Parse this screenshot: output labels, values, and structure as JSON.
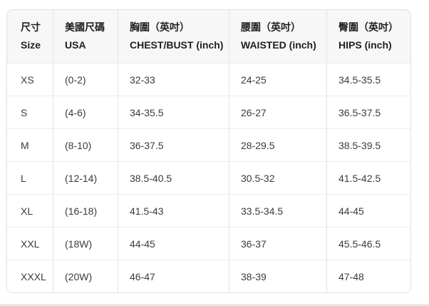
{
  "colors": {
    "page_background": "#ffffff",
    "header_background": "#f7f7f7",
    "outer_border": "#e0e0e0",
    "vertical_divider": "#e3e3e3",
    "horizontal_divider": "#ececec",
    "header_text": "#1f1f1f",
    "body_text": "#3b3b3b"
  },
  "chart_data": {
    "type": "table",
    "title": "",
    "columns": [
      {
        "zh": "尺寸",
        "en": "Size"
      },
      {
        "zh": "美國尺碼",
        "en": "USA"
      },
      {
        "zh": "胸圍（英吋）",
        "en": "CHEST/BUST (inch)"
      },
      {
        "zh": "腰圍（英吋）",
        "en": "WAISTED (inch)"
      },
      {
        "zh": "臀圍（英吋）",
        "en": "HIPS (inch)"
      }
    ],
    "rows": [
      {
        "size": "XS",
        "usa": "(0-2)",
        "chest": "32-33",
        "waist": "24-25",
        "hips": "34.5-35.5"
      },
      {
        "size": "S",
        "usa": "(4-6)",
        "chest": "34-35.5",
        "waist": "26-27",
        "hips": "36.5-37.5"
      },
      {
        "size": "M",
        "usa": "(8-10)",
        "chest": "36-37.5",
        "waist": "28-29.5",
        "hips": "38.5-39.5"
      },
      {
        "size": "L",
        "usa": "(12-14)",
        "chest": "38.5-40.5",
        "waist": "30.5-32",
        "hips": "41.5-42.5"
      },
      {
        "size": "XL",
        "usa": "(16-18)",
        "chest": "41.5-43",
        "waist": "33.5-34.5",
        "hips": "44-45"
      },
      {
        "size": "XXL",
        "usa": "(18W)",
        "chest": "44-45",
        "waist": "36-37",
        "hips": "45.5-46.5"
      },
      {
        "size": "XXXL",
        "usa": "(20W)",
        "chest": "46-47",
        "waist": "38-39",
        "hips": "47-48"
      }
    ]
  }
}
